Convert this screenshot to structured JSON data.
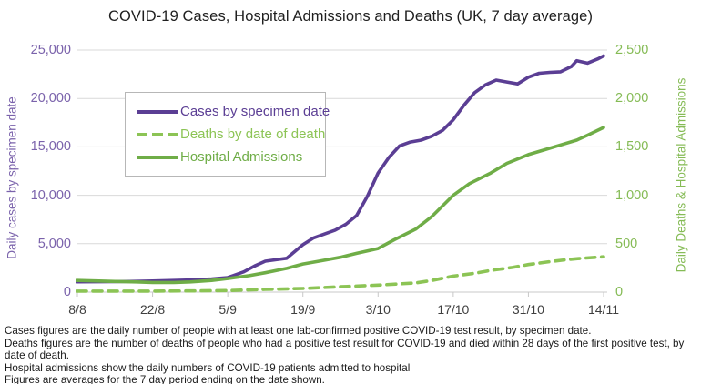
{
  "title": "COVID-19 Cases, Hospital Admissions and Deaths (UK, 7 day average)",
  "legend": {
    "items": [
      {
        "label": "Cases by specimen date",
        "color": "#5b3e94",
        "style": "solid"
      },
      {
        "label": "Deaths by date of death",
        "color": "#8cc455",
        "style": "dashed"
      },
      {
        "label": "Hospital Admissions",
        "color": "#6fad47",
        "style": "solid"
      }
    ]
  },
  "footnotes": {
    "line1": "Cases figures are the daily number of people with at least one lab-confirmed positive COVID-19 test result, by specimen date.",
    "line2": "Deaths figures are the number of deaths of people who had a positive test result for COVID-19 and died within 28 days of the first positive test, by date of death.",
    "line3": "Hospital admissions show the daily numbers of COVID-19 patients admitted to hospital",
    "line4": "Figures are averages for the 7 day period ending on the date shown."
  },
  "chart_data": {
    "type": "line",
    "title": "COVID-19 Cases, Hospital Admissions and Deaths (UK, 7 day average)",
    "x_axis": {
      "tick_labels": [
        "8/8",
        "22/8",
        "5/9",
        "19/9",
        "3/10",
        "17/10",
        "31/10",
        "14/11"
      ],
      "tick_days": [
        0,
        14,
        28,
        42,
        56,
        70,
        84,
        98
      ],
      "day_range": [
        0,
        98
      ]
    },
    "y_left": {
      "label": "Daily cases by specimen date",
      "tick_labels": [
        "0",
        "5,000",
        "10,000",
        "15,000",
        "20,000",
        "25,000"
      ],
      "tick_values": [
        0,
        5000,
        10000,
        15000,
        20000,
        25000
      ],
      "max": 25000,
      "color": "#7a62ab"
    },
    "y_right": {
      "label": "Daily Deaths & Hospital Admissions",
      "tick_labels": [
        "0",
        "500",
        "1,000",
        "1,500",
        "2,000",
        "2,500"
      ],
      "tick_values": [
        0,
        500,
        1000,
        1500,
        2000,
        2500
      ],
      "max": 2500,
      "color": "#85bb55"
    },
    "grid": true,
    "legend_position": "upper-left-inside",
    "series": [
      {
        "name": "Cases by specimen date",
        "axis": "left",
        "color": "#5b3e94",
        "style": "solid",
        "points": [
          [
            0,
            1060
          ],
          [
            4,
            1070
          ],
          [
            7,
            1080
          ],
          [
            11,
            1110
          ],
          [
            14,
            1150
          ],
          [
            18,
            1200
          ],
          [
            21,
            1250
          ],
          [
            25,
            1350
          ],
          [
            28,
            1500
          ],
          [
            31,
            2100
          ],
          [
            33,
            2700
          ],
          [
            35,
            3200
          ],
          [
            37,
            3350
          ],
          [
            39,
            3500
          ],
          [
            42,
            4900
          ],
          [
            44,
            5600
          ],
          [
            46,
            6000
          ],
          [
            48,
            6400
          ],
          [
            50,
            7000
          ],
          [
            52,
            7900
          ],
          [
            54,
            9900
          ],
          [
            56,
            12300
          ],
          [
            58,
            13900
          ],
          [
            60,
            15100
          ],
          [
            62,
            15500
          ],
          [
            64,
            15700
          ],
          [
            66,
            16100
          ],
          [
            68,
            16700
          ],
          [
            70,
            17800
          ],
          [
            72,
            19300
          ],
          [
            74,
            20600
          ],
          [
            76,
            21400
          ],
          [
            78,
            21900
          ],
          [
            80,
            21700
          ],
          [
            82,
            21500
          ],
          [
            84,
            22200
          ],
          [
            86,
            22600
          ],
          [
            88,
            22700
          ],
          [
            90,
            22750
          ],
          [
            92,
            23300
          ],
          [
            93,
            23900
          ],
          [
            95,
            23650
          ],
          [
            97,
            24100
          ],
          [
            98,
            24400
          ]
        ]
      },
      {
        "name": "Deaths by date of death",
        "axis": "right",
        "color": "#8cc455",
        "style": "dashed",
        "points": [
          [
            0,
            10
          ],
          [
            7,
            10
          ],
          [
            14,
            10
          ],
          [
            21,
            12
          ],
          [
            28,
            16
          ],
          [
            35,
            28
          ],
          [
            42,
            38
          ],
          [
            49,
            55
          ],
          [
            56,
            72
          ],
          [
            63,
            95
          ],
          [
            66,
            120
          ],
          [
            70,
            165
          ],
          [
            74,
            195
          ],
          [
            77,
            225
          ],
          [
            81,
            255
          ],
          [
            84,
            285
          ],
          [
            88,
            315
          ],
          [
            91,
            335
          ],
          [
            94,
            350
          ],
          [
            98,
            365
          ]
        ]
      },
      {
        "name": "Hospital Admissions",
        "axis": "right",
        "color": "#6fad47",
        "style": "solid",
        "points": [
          [
            0,
            120
          ],
          [
            4,
            115
          ],
          [
            7,
            110
          ],
          [
            11,
            105
          ],
          [
            14,
            100
          ],
          [
            18,
            100
          ],
          [
            21,
            105
          ],
          [
            25,
            120
          ],
          [
            28,
            140
          ],
          [
            32,
            170
          ],
          [
            35,
            200
          ],
          [
            39,
            245
          ],
          [
            42,
            290
          ],
          [
            45,
            320
          ],
          [
            49,
            360
          ],
          [
            52,
            400
          ],
          [
            56,
            450
          ],
          [
            59,
            540
          ],
          [
            63,
            650
          ],
          [
            66,
            780
          ],
          [
            70,
            1000
          ],
          [
            73,
            1120
          ],
          [
            77,
            1230
          ],
          [
            80,
            1330
          ],
          [
            84,
            1420
          ],
          [
            87,
            1470
          ],
          [
            90,
            1520
          ],
          [
            93,
            1570
          ],
          [
            95,
            1620
          ],
          [
            98,
            1700
          ]
        ]
      }
    ]
  }
}
